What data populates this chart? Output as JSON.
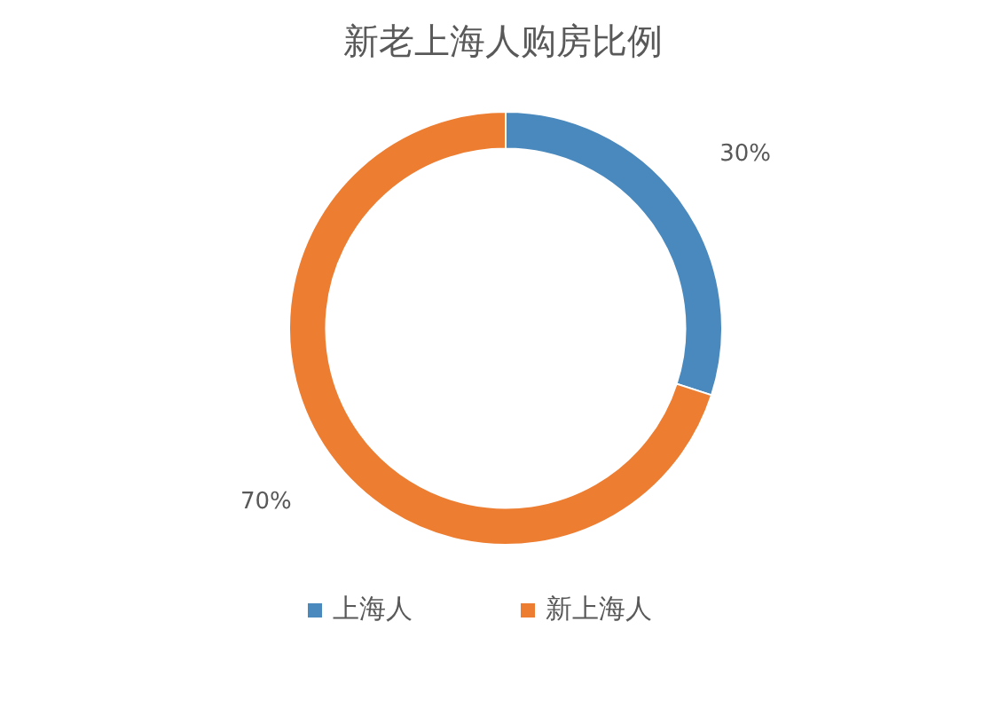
{
  "chart_data": {
    "type": "donut",
    "title": "新老上海人购房比例",
    "categories": [
      "上海人",
      "新上海人"
    ],
    "values": [
      30,
      70
    ],
    "colors": [
      "#4a89bd",
      "#ed7d31"
    ],
    "value_labels": [
      "30%",
      "70%"
    ],
    "legend": "bottom"
  }
}
